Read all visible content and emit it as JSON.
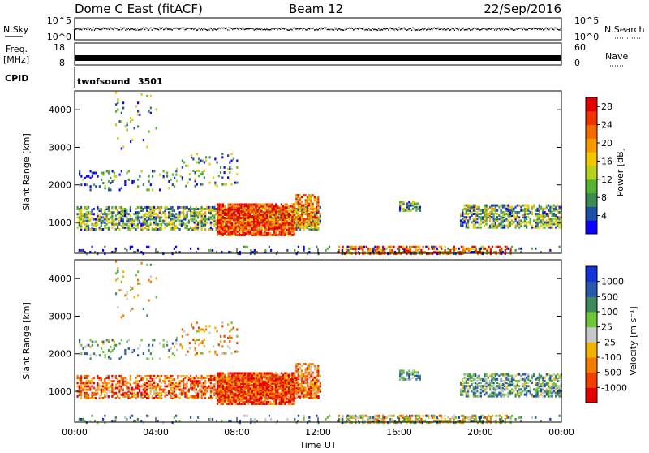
{
  "header": {
    "station": "Dome C East (fitACF)",
    "beam": "Beam 12",
    "date": "22/Sep/2016"
  },
  "nsky_panel": {
    "left_label": "N.Sky",
    "left_ticks": [
      "10^5",
      "10^0"
    ],
    "right_label": "N.Search",
    "right_ticks": [
      "10^5",
      "10^0"
    ]
  },
  "freq_panel": {
    "left_label_line1": "Freq.",
    "left_label_line2": "[MHz]",
    "left_ticks": [
      "18",
      "8"
    ],
    "right_label": "Nave",
    "right_ticks": [
      "60",
      "0"
    ]
  },
  "cpid": {
    "label": "CPID",
    "program": "twofsound",
    "id": "3501"
  },
  "chart_data": [
    {
      "type": "heatmap",
      "title": "",
      "ylabel": "Slant Range [km]",
      "ylim": [
        180,
        4500
      ],
      "yticks": [
        "1000",
        "2000",
        "3000",
        "4000"
      ],
      "colorbar_label": "Power [dB]",
      "colorbar_ticks": [
        "4",
        "8",
        "12",
        "16",
        "20",
        "24",
        "28"
      ],
      "colorbar_colors": [
        "#0d00ff",
        "#1f4ea6",
        "#3c8a52",
        "#57b232",
        "#b6d21d",
        "#f2c600",
        "#f59a00",
        "#f26a00",
        "#ef3400",
        "#e40000"
      ],
      "colorbar_range": [
        0,
        30
      ]
    },
    {
      "type": "heatmap",
      "title": "",
      "ylabel": "Slant Range [km]",
      "ylim": [
        180,
        4500
      ],
      "yticks": [
        "1000",
        "2000",
        "3000",
        "4000"
      ],
      "xlabel": "Time UT",
      "xticks": [
        "00:00",
        "04:00",
        "08:00",
        "12:00",
        "16:00",
        "20:00",
        "00:00"
      ],
      "xlim_hours": [
        0,
        24
      ],
      "colorbar_label": "Velocity [m s⁻¹]",
      "colorbar_ticks": [
        "1000",
        "500",
        "100",
        "25",
        "-25",
        "-100",
        "-500",
        "-1000"
      ],
      "colorbar_colors": [
        "#1433d6",
        "#2a58a8",
        "#3f8a5a",
        "#6fc43a",
        "#c8c8c8",
        "#f2b300",
        "#f07c00",
        "#ef4000",
        "#e40000"
      ]
    }
  ],
  "colors": {
    "frame": "#000000",
    "axis_tick": "#000000"
  }
}
